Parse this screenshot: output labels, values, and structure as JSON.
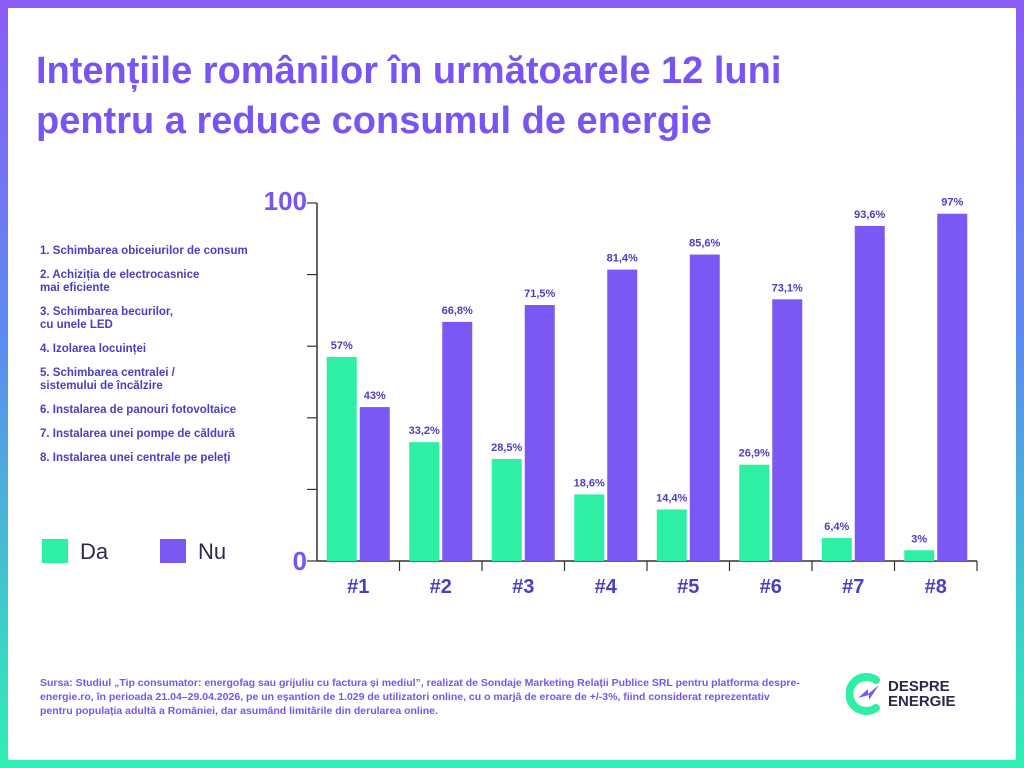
{
  "title_lines": [
    "Intențiile românilor în următoarele 12 luni",
    "pentru a reduce consumul de energie"
  ],
  "category_legend": [
    "1. Schimbarea obiceiurilor de consum",
    "2. Achiziția de electrocasnice\nmai eficiente",
    "3. Schimbarea becurilor,\ncu unele LED",
    "4. Izolarea locuinței",
    "5. Schimbarea centralei /\nsistemului de încălzire",
    "6. Instalarea de panouri fotovoltaice",
    "7. Instalarea unei pompe de căldură",
    "8. Instalarea unei centrale pe peleți"
  ],
  "colors": {
    "da": "#2ef0a4",
    "nu": "#7b57f4",
    "title": "#7a54f2",
    "axis": "#333333"
  },
  "chart_data": {
    "type": "bar",
    "title": "Intențiile românilor în următoarele 12 luni pentru a reduce consumul de energie",
    "categories": [
      "#1",
      "#2",
      "#3",
      "#4",
      "#5",
      "#6",
      "#7",
      "#8"
    ],
    "series": [
      {
        "name": "Da",
        "values": [
          57,
          33.2,
          28.5,
          18.6,
          14.4,
          26.9,
          6.4,
          3
        ],
        "labels": [
          "57%",
          "33,2%",
          "28,5%",
          "18,6%",
          "14,4%",
          "26,9%",
          "6,4%",
          "3%"
        ]
      },
      {
        "name": "Nu",
        "values": [
          43,
          66.8,
          71.5,
          81.4,
          85.6,
          73.1,
          93.6,
          97
        ],
        "labels": [
          "43%",
          "66,8%",
          "71,5%",
          "81,4%",
          "85,6%",
          "73,1%",
          "93,6%",
          "97%"
        ]
      }
    ],
    "ylim": [
      0,
      100
    ],
    "y_tick_labels": [
      "0",
      "100"
    ],
    "y_minor_ticks": [
      20,
      40,
      60,
      80
    ],
    "grid": false,
    "legend_position": "bottom-left"
  },
  "source": "Sursa: Studiul „Tip consumator: energofag sau grijuliu cu factura și mediul”, realizat de Sondaje Marketing Relații Publice SRL pentru platforma despre-energie.ro, în perioada 21.04–29.04.2026, pe un eșantion de 1.029 de utilizatori online, cu o marjă de eroare de +/-3%, fiind considerat reprezentativ pentru populația adultă a României, dar asumând limitările din derularea online.",
  "logo": {
    "line1": "DESPRE",
    "line2": "ENERGIE",
    "icon": "lightning-c-logo-icon"
  }
}
